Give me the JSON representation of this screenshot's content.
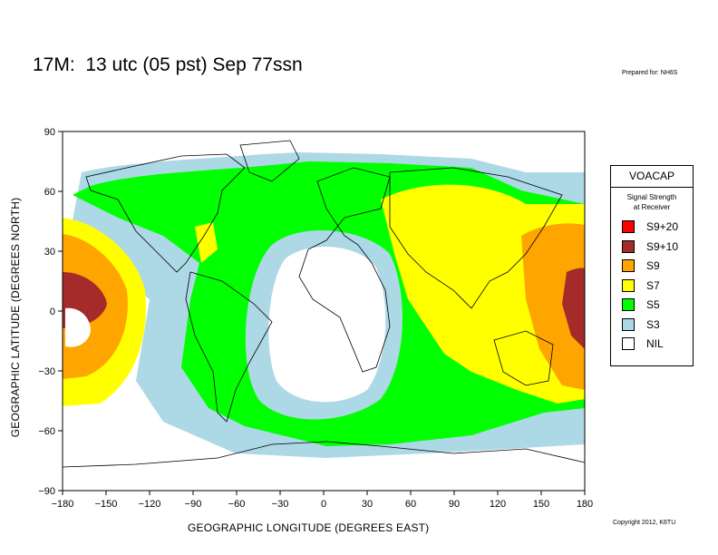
{
  "header": {
    "title": "17M:  13 utc (05 pst) Sep 77ssn",
    "prepared_for": "Prepared for: NH6S"
  },
  "footer": {
    "copyright": "Copyright 2012, K6TU"
  },
  "axes": {
    "xlabel": "GEOGRAPHIC LONGITUDE (DEGREES EAST)",
    "ylabel": "GEOGRAPHIC LATITUDE (DEGREES NORTH)",
    "xticks": [
      "−180",
      "−150",
      "−120",
      "−90",
      "−60",
      "−30",
      "0",
      "30",
      "60",
      "90",
      "120",
      "150",
      "180"
    ],
    "yticks": [
      "90",
      "60",
      "30",
      "0",
      "−30",
      "−60",
      "−90"
    ],
    "xrange": [
      -180,
      180
    ],
    "yrange": [
      -90,
      90
    ]
  },
  "legend": {
    "title": "VOACAP",
    "subtitle_line1": "Signal Strength",
    "subtitle_line2": "at Receiver",
    "items": [
      {
        "label": "S9+20",
        "color": "#ff0000"
      },
      {
        "label": "S9+10",
        "color": "#a52a2a"
      },
      {
        "label": "S9",
        "color": "#ffa500"
      },
      {
        "label": "S7",
        "color": "#ffff00"
      },
      {
        "label": "S5",
        "color": "#00ff00"
      },
      {
        "label": "S3",
        "color": "#add8e6"
      },
      {
        "label": "NIL",
        "color": "#ffffff"
      }
    ]
  }
}
